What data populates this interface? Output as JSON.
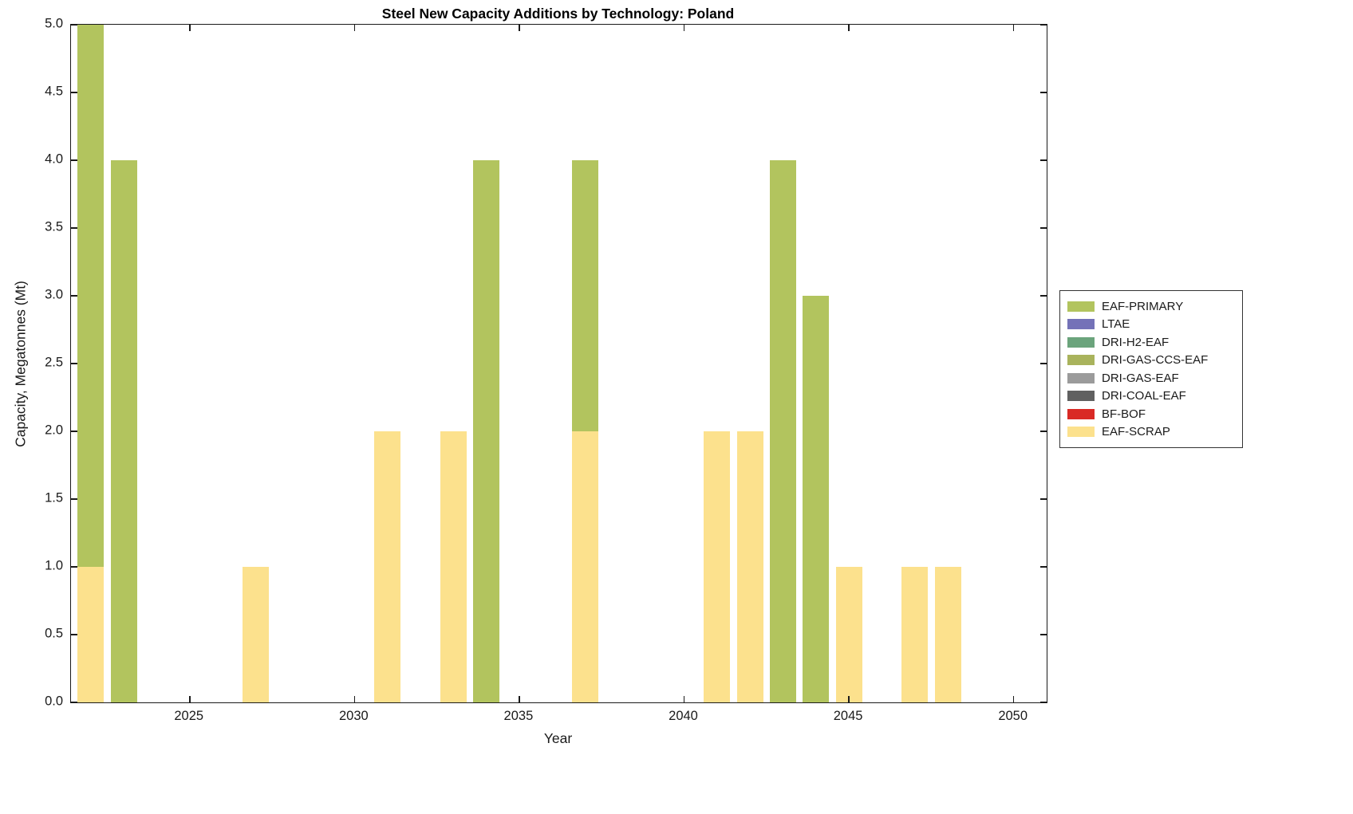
{
  "chart_data": {
    "type": "bar",
    "stacked": true,
    "title": "Steel New Capacity Additions by Technology: Poland",
    "xlabel": "Year",
    "ylabel": "Capacity, Megatonnes (Mt)",
    "xlim": [
      2021.4,
      2051.0
    ],
    "ylim": [
      0,
      5
    ],
    "bar_width_years": 0.8,
    "grid": false,
    "legend_position": "right-outside",
    "xticks": [
      2025,
      2030,
      2035,
      2040,
      2045,
      2050
    ],
    "xtick_labels": [
      "2025",
      "2030",
      "2035",
      "2040",
      "2045",
      "2050"
    ],
    "yticks": [
      0,
      0.5,
      1,
      1.5,
      2,
      2.5,
      3,
      3.5,
      4,
      4.5,
      5
    ],
    "ytick_labels": [
      "0.0",
      "0.5",
      "1.0",
      "1.5",
      "2.0",
      "2.5",
      "3.0",
      "3.5",
      "4.0",
      "4.5",
      "5.0"
    ],
    "legend": [
      {
        "label": "EAF-PRIMARY",
        "color": "#b2c45e"
      },
      {
        "label": "LTAE",
        "color": "#7472b8"
      },
      {
        "label": "DRI-H2-EAF",
        "color": "#6ba47c"
      },
      {
        "label": "DRI-GAS-CCS-EAF",
        "color": "#a9b35c"
      },
      {
        "label": "DRI-GAS-EAF",
        "color": "#9b9b9b"
      },
      {
        "label": "DRI-COAL-EAF",
        "color": "#606060"
      },
      {
        "label": "BF-BOF",
        "color": "#d92a25"
      },
      {
        "label": "EAF-SCRAP",
        "color": "#fce18d"
      }
    ],
    "series": [
      {
        "name": "EAF-SCRAP",
        "color": "#fce18d",
        "values": [
          {
            "x": 2022,
            "y": 1
          },
          {
            "x": 2027,
            "y": 1
          },
          {
            "x": 2031,
            "y": 2
          },
          {
            "x": 2033,
            "y": 2
          },
          {
            "x": 2037,
            "y": 2
          },
          {
            "x": 2041,
            "y": 2
          },
          {
            "x": 2042,
            "y": 2
          },
          {
            "x": 2045,
            "y": 1
          },
          {
            "x": 2047,
            "y": 1
          },
          {
            "x": 2048,
            "y": 1
          }
        ]
      },
      {
        "name": "EAF-PRIMARY",
        "color": "#b2c45e",
        "values": [
          {
            "x": 2022,
            "y": 4
          },
          {
            "x": 2023,
            "y": 4
          },
          {
            "x": 2034,
            "y": 4
          },
          {
            "x": 2037,
            "y": 2
          },
          {
            "x": 2043,
            "y": 4
          },
          {
            "x": 2044,
            "y": 3
          }
        ]
      }
    ]
  }
}
